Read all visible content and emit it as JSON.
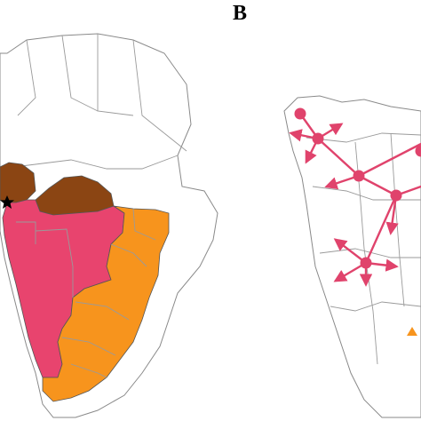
{
  "figure": {
    "panel_label": "B"
  },
  "colors": {
    "region_pink": "#e8446e",
    "region_brown": "#8b4513",
    "region_orange": "#f7941d",
    "route": "#e0436c",
    "origin_marker": "#000000",
    "extra_marker": "#f7941d"
  },
  "left_map": {
    "regions": [
      {
        "id": "northwest-brown",
        "color_key": "region_brown"
      },
      {
        "id": "central-brown",
        "color_key": "region_brown"
      },
      {
        "id": "west-central-pink",
        "color_key": "region_pink"
      },
      {
        "id": "east-southern-orange",
        "color_key": "region_orange"
      }
    ],
    "origin_marker": "star-icon"
  },
  "right_map": {
    "nodes": [
      {
        "id": "n1"
      },
      {
        "id": "n2"
      },
      {
        "id": "n3"
      },
      {
        "id": "n4"
      },
      {
        "id": "n5"
      },
      {
        "id": "n6"
      }
    ],
    "routes": [
      {
        "from": "n1",
        "to": "n2"
      },
      {
        "from": "n2",
        "to": "n3"
      },
      {
        "from": "n3",
        "to": "n4"
      },
      {
        "from": "n4",
        "to": "n5"
      },
      {
        "from": "n3",
        "to": "east"
      },
      {
        "from": "n4",
        "to": "east"
      }
    ]
  }
}
